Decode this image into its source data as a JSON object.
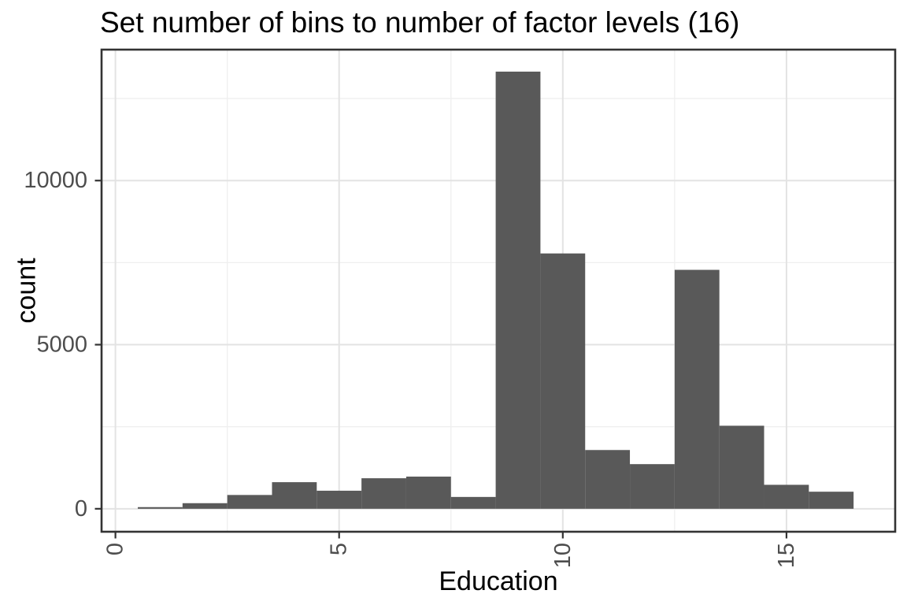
{
  "chart_data": {
    "type": "histogram",
    "title": "Set number of bins to number of factor levels (16)",
    "xlabel": "Education",
    "ylabel": "count",
    "bin_width": 1,
    "bin_centers": [
      1,
      2,
      3,
      4,
      5,
      6,
      7,
      8,
      9,
      10,
      11,
      12,
      13,
      14,
      15,
      16
    ],
    "counts": [
      50,
      170,
      420,
      810,
      550,
      930,
      980,
      360,
      13320,
      7780,
      1790,
      1360,
      7280,
      2530,
      730,
      520
    ],
    "x_major_ticks": [
      0,
      5,
      10,
      15
    ],
    "x_minor_gridlines": [
      2.5,
      7.5,
      12.5
    ],
    "y_major_ticks": [
      0,
      5000,
      10000
    ],
    "y_minor_gridlines": [
      2500,
      7500,
      12500
    ],
    "xlim": [
      -0.31,
      17.43
    ],
    "ylim": [
      -700,
      13990
    ],
    "grid": true,
    "legend": "none",
    "colors": {
      "bar_fill": "#595959",
      "panel_border": "#333333",
      "grid_major": "#e3e3e3",
      "grid_minor": "#efefef",
      "tick_mark": "#333333",
      "tick_label": "#4d4d4d",
      "text": "#000000",
      "background": "#ffffff"
    }
  }
}
